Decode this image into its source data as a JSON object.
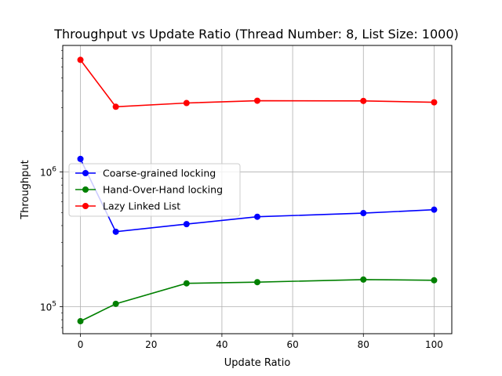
{
  "chart_data": {
    "type": "line",
    "title": "Throughput vs Update Ratio (Thread Number: 8, List Size: 1000)",
    "xlabel": "Update Ratio",
    "ylabel": "Throughput",
    "x": [
      0,
      10,
      30,
      50,
      80,
      100
    ],
    "xlim": [
      -5,
      105
    ],
    "ylim": [
      63000,
      8700000
    ],
    "yscale": "log",
    "x_ticks": [
      0,
      20,
      40,
      60,
      80,
      100
    ],
    "y_ticks": [
      {
        "value": 100000,
        "label": "10^5"
      },
      {
        "value": 1000000,
        "label": "10^6"
      }
    ],
    "grid": true,
    "legend_position": "center-left",
    "series": [
      {
        "name": "Coarse-grained locking",
        "color": "#0000ff",
        "values": [
          1250000,
          360000,
          410000,
          465000,
          495000,
          525000
        ]
      },
      {
        "name": "Hand-Over-Hand locking",
        "color": "#008000",
        "values": [
          78000,
          105000,
          149000,
          152000,
          159000,
          157000
        ]
      },
      {
        "name": "Lazy Linked List",
        "color": "#ff0000",
        "values": [
          6800000,
          3050000,
          3250000,
          3380000,
          3370000,
          3290000
        ]
      }
    ]
  }
}
